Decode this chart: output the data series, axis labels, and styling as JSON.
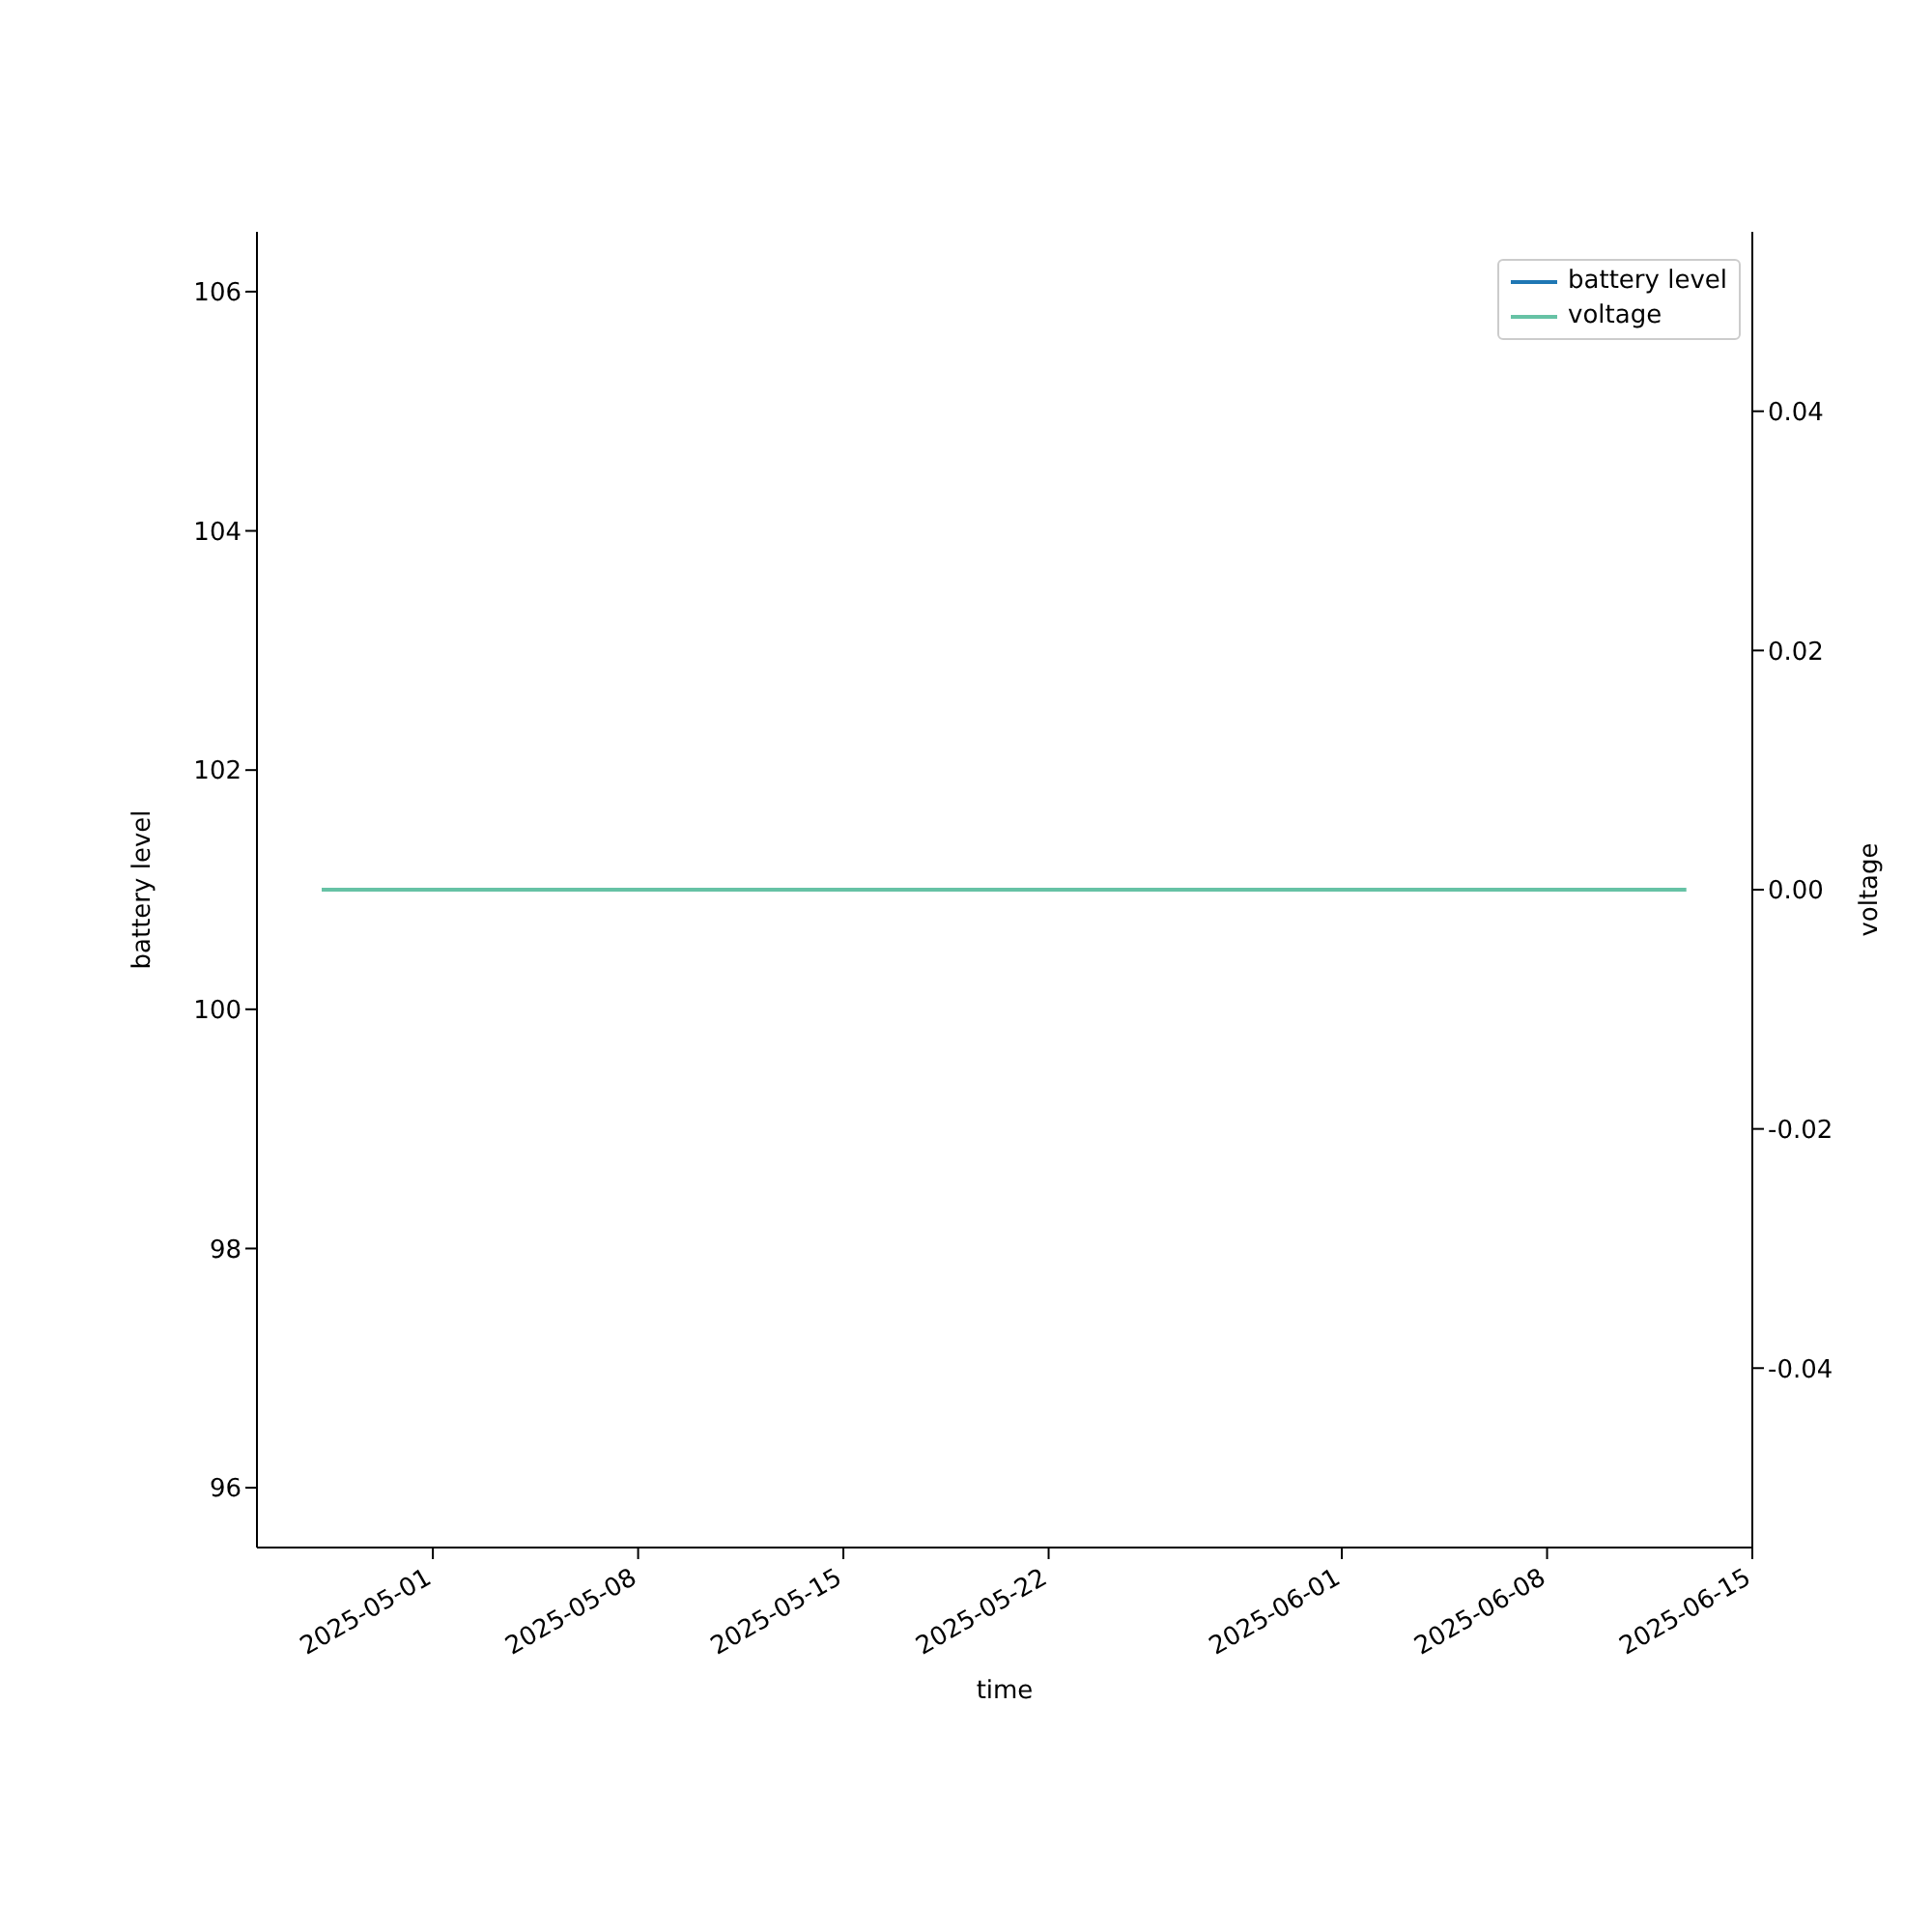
{
  "chart_data": {
    "type": "line",
    "xlabel": "time",
    "ylabel": "battery level",
    "y2label": "voltage",
    "x": [
      "2025-04-27T05:00",
      "2025-05-04T05:00",
      "2025-05-11T05:00",
      "2025-05-18T05:00",
      "2025-05-25T05:00",
      "2025-06-01T05:00",
      "2025-06-08T05:00",
      "2025-06-12T18:00"
    ],
    "series": [
      {
        "name": "battery level",
        "color": "#1f77b4",
        "values": [
          null,
          null,
          null,
          null,
          null,
          null,
          null,
          null
        ]
      },
      {
        "name": "voltage",
        "color": "#66c2a5",
        "axis": "y2",
        "values": [
          0,
          0,
          0,
          0,
          0,
          0,
          0,
          0
        ]
      }
    ],
    "xlim": [
      "2025-04-25",
      "2025-06-15"
    ],
    "xticks": [
      "2025-05-01",
      "2025-05-08",
      "2025-05-15",
      "2025-05-22",
      "2025-06-01",
      "2025-06-08",
      "2025-06-15"
    ],
    "ylim": [
      95.5,
      106.5
    ],
    "yticks": [
      96,
      98,
      100,
      102,
      104,
      106
    ],
    "y2lim": [
      -0.055,
      0.055
    ],
    "y2ticks": [
      -0.04,
      -0.02,
      {
        "value": 0,
        "label": "0.00"
      },
      0.02,
      0.04
    ],
    "legend": "top right",
    "line_style": "solid"
  }
}
